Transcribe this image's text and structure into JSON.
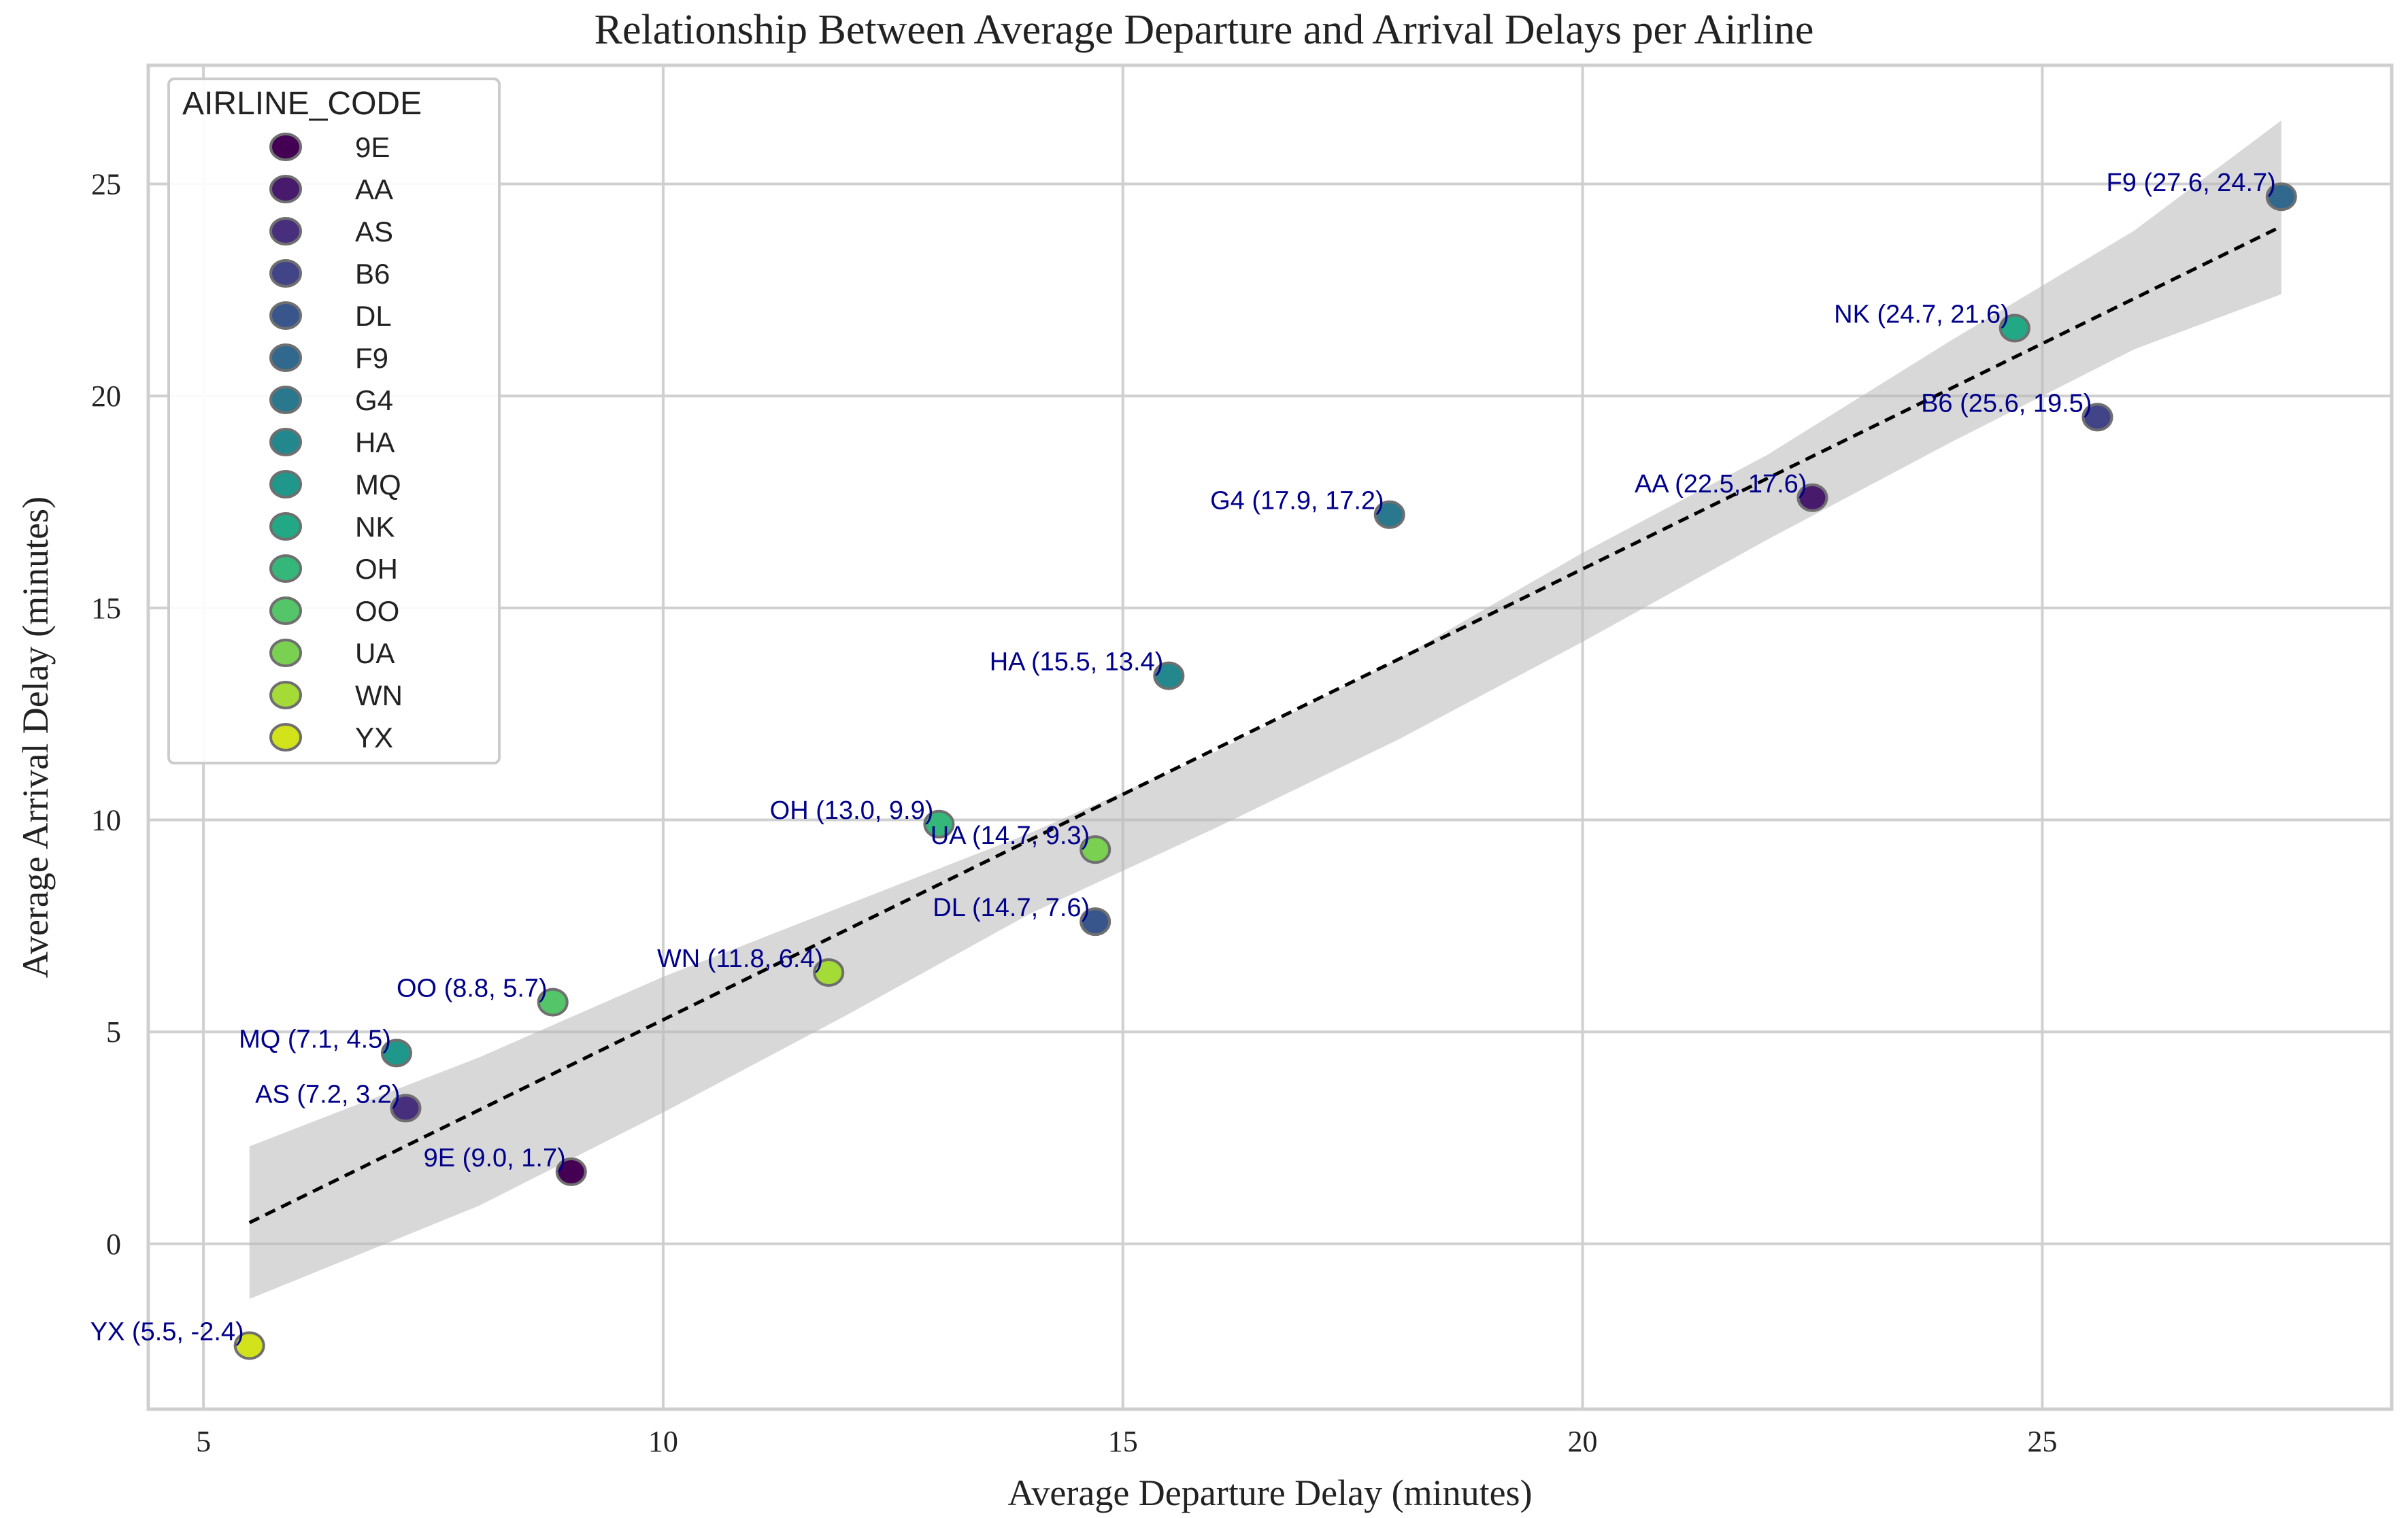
{
  "chart_data": {
    "type": "scatter",
    "title": "Relationship Between Average Departure and Arrival Delays per Airline",
    "xlabel": "Average Departure Delay (minutes)",
    "ylabel": "Average Arrival Delay (minutes)",
    "xlim": [
      4.4,
      28.8
    ],
    "ylim": [
      -3.9,
      27.8
    ],
    "xticks": [
      5,
      10,
      15,
      20,
      25
    ],
    "yticks": [
      0,
      5,
      10,
      15,
      20,
      25
    ],
    "grid": true,
    "legend": {
      "title": "AIRLINE_CODE",
      "position": "top-left"
    },
    "points": [
      {
        "code": "9E",
        "x": 9.0,
        "y": 1.7,
        "label": "9E (9.0, 1.7)",
        "color": "#440154"
      },
      {
        "code": "AA",
        "x": 22.5,
        "y": 17.6,
        "label": "AA (22.5, 17.6)",
        "color": "#481a6c"
      },
      {
        "code": "AS",
        "x": 7.2,
        "y": 3.2,
        "label": "AS (7.2, 3.2)",
        "color": "#472f7d"
      },
      {
        "code": "B6",
        "x": 25.6,
        "y": 19.5,
        "label": "B6 (25.6, 19.5)",
        "color": "#414487"
      },
      {
        "code": "DL",
        "x": 14.7,
        "y": 7.6,
        "label": "DL (14.7, 7.6)",
        "color": "#39568c"
      },
      {
        "code": "F9",
        "x": 27.6,
        "y": 24.7,
        "label": "F9 (27.6, 24.7)",
        "color": "#31688e"
      },
      {
        "code": "G4",
        "x": 17.9,
        "y": 17.2,
        "label": "G4 (17.9, 17.2)",
        "color": "#2a788e"
      },
      {
        "code": "HA",
        "x": 15.5,
        "y": 13.4,
        "label": "HA (15.5, 13.4)",
        "color": "#23888e"
      },
      {
        "code": "MQ",
        "x": 7.1,
        "y": 4.5,
        "label": "MQ (7.1, 4.5)",
        "color": "#1f988b"
      },
      {
        "code": "NK",
        "x": 24.7,
        "y": 21.6,
        "label": "NK (24.7, 21.6)",
        "color": "#22a884"
      },
      {
        "code": "OH",
        "x": 13.0,
        "y": 9.9,
        "label": "OH (13.0, 9.9)",
        "color": "#35b779"
      },
      {
        "code": "OO",
        "x": 8.8,
        "y": 5.7,
        "label": "OO (8.8, 5.7)",
        "color": "#54c568"
      },
      {
        "code": "UA",
        "x": 14.7,
        "y": 9.3,
        "label": "UA (14.7, 9.3)",
        "color": "#7ad151"
      },
      {
        "code": "WN",
        "x": 11.8,
        "y": 6.4,
        "label": "WN (11.8, 6.4)",
        "color": "#a5db36"
      },
      {
        "code": "YX",
        "x": 5.5,
        "y": -2.4,
        "label": "YX (5.5, -2.4)",
        "color": "#d2e21b"
      }
    ],
    "regression": {
      "line": [
        [
          5.5,
          0.5
        ],
        [
          27.6,
          24.0
        ]
      ],
      "ci_upper": [
        [
          5.5,
          2.3
        ],
        [
          8.0,
          4.4
        ],
        [
          10.0,
          6.3
        ],
        [
          12.0,
          8.0
        ],
        [
          14.0,
          9.7
        ],
        [
          16.0,
          11.6
        ],
        [
          18.0,
          13.8
        ],
        [
          20.0,
          16.3
        ],
        [
          22.0,
          18.6
        ],
        [
          24.0,
          21.3
        ],
        [
          26.0,
          23.9
        ],
        [
          27.6,
          26.5
        ]
      ],
      "ci_lower": [
        [
          27.6,
          22.4
        ],
        [
          26.0,
          21.1
        ],
        [
          24.0,
          18.9
        ],
        [
          22.0,
          16.6
        ],
        [
          20.0,
          14.2
        ],
        [
          18.0,
          11.9
        ],
        [
          16.0,
          9.8
        ],
        [
          14.0,
          7.8
        ],
        [
          12.0,
          5.4
        ],
        [
          10.0,
          3.1
        ],
        [
          8.0,
          0.9
        ],
        [
          5.5,
          -1.3
        ]
      ]
    }
  }
}
